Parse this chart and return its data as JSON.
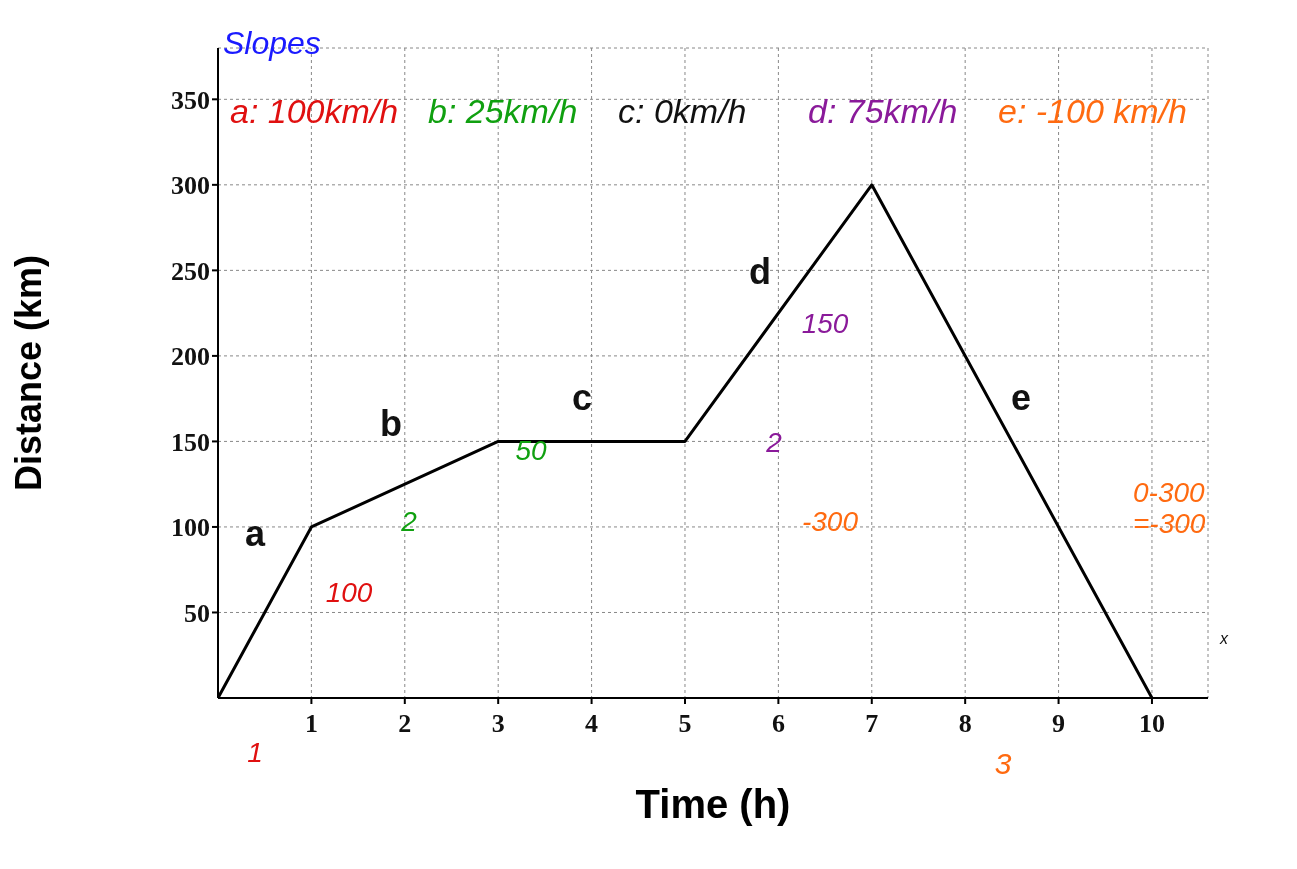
{
  "chart_data": {
    "type": "line",
    "xlabel": "Time (h)",
    "ylabel": "Distance (km)",
    "x": [
      0,
      1,
      3,
      5,
      7,
      10
    ],
    "series": [
      {
        "color": "#000000",
        "values": [
          0,
          100,
          150,
          150,
          300,
          0
        ]
      }
    ],
    "xlim": [
      0,
      10.6
    ],
    "ylim": [
      0,
      380
    ],
    "xticks": [
      1,
      2,
      3,
      4,
      5,
      6,
      7,
      8,
      9,
      10
    ],
    "yticks": [
      50,
      100,
      150,
      200,
      250,
      300,
      350
    ],
    "grid": true,
    "marker": "none",
    "line_style": "solid",
    "annotations": [
      "Slopes",
      "a: 100km/h",
      "b: 25km/h",
      "c: 0km/h",
      "d: 75km/h",
      "e: -100 km/h",
      "0-300 =-300",
      "x",
      "1",
      "3",
      "a",
      "b",
      "c",
      "d",
      "e",
      "100",
      "2",
      "50",
      "2",
      "150",
      "-300"
    ]
  }
}
